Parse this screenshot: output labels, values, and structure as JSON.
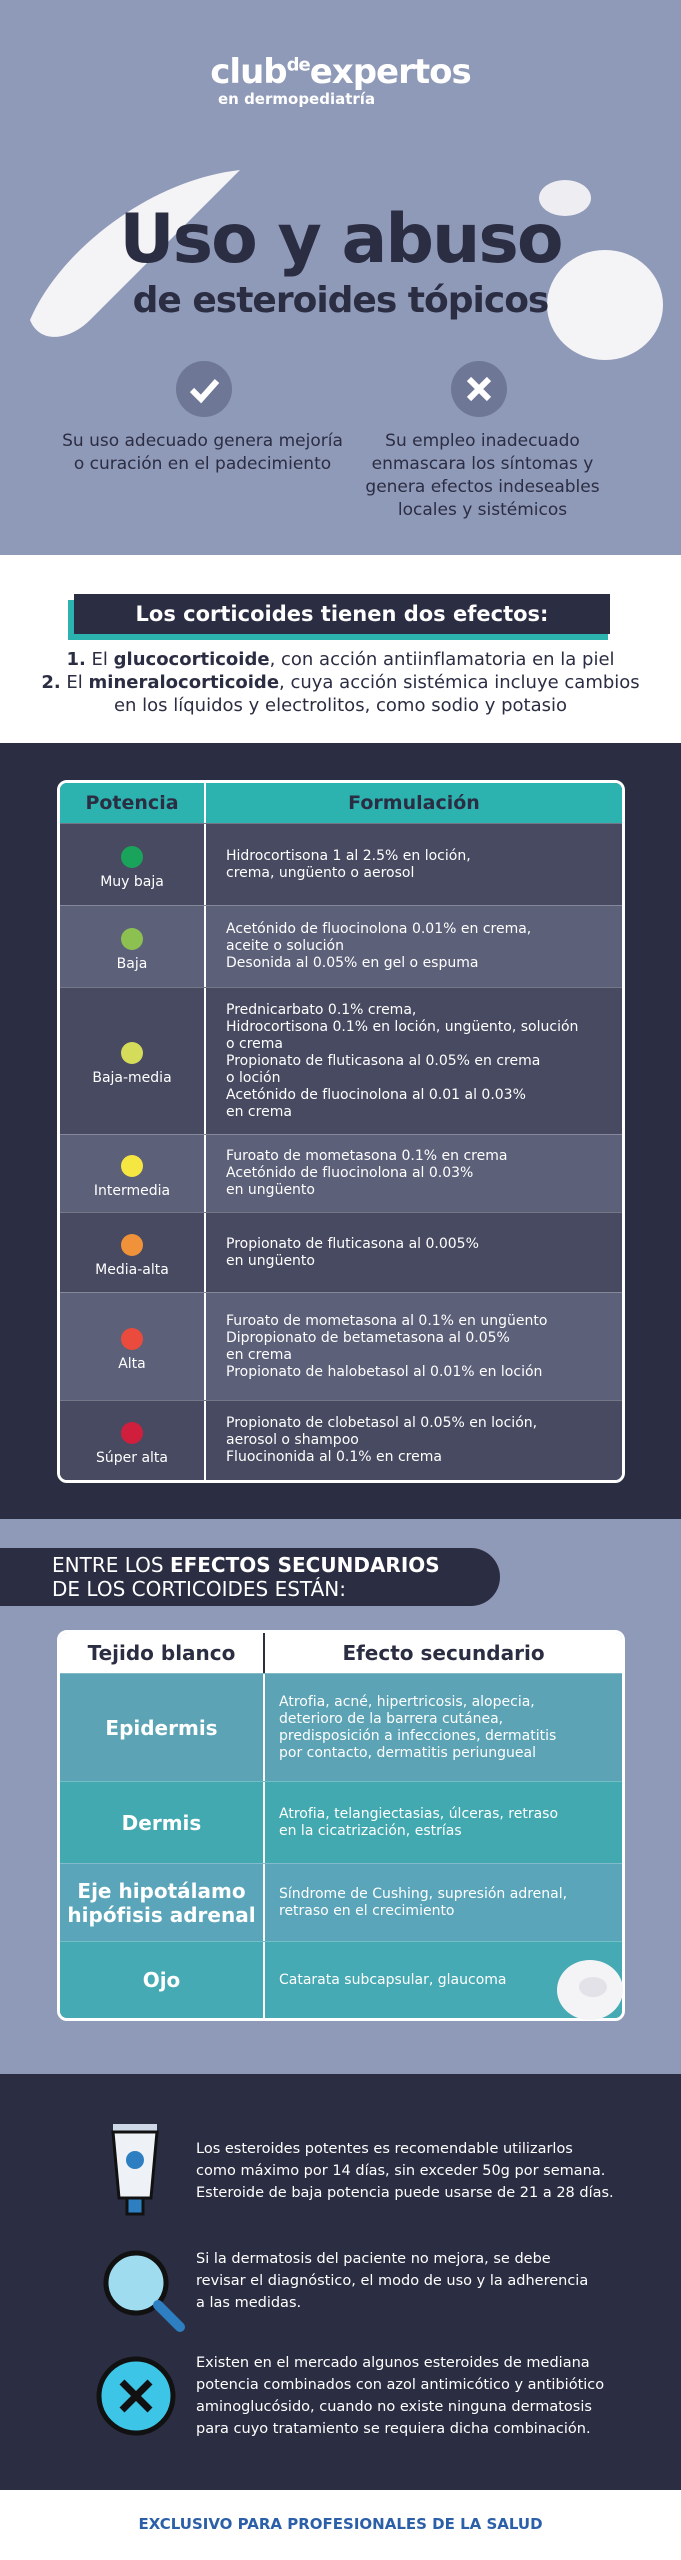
{
  "header": {
    "brand": [
      "club",
      "de",
      "expertos"
    ],
    "brand_sub": "en dermopediatría",
    "title": "Uso y abuso",
    "subtitle": "de esteroides tópicos",
    "good": "Su uso adecuado genera mejoría o curación en el padecimiento",
    "bad": "Su empleo inadecuado enmascara los síntomas y genera efectos indeseables locales y sistémicos"
  },
  "effects": {
    "heading": "Los corticoides tienen dos efectos:",
    "items": [
      [
        "1.",
        "El",
        "glucocorticoide",
        ", con acción antiinflamatoria en la piel"
      ],
      [
        "2.",
        "El",
        "mineralocorticoide",
        ", cuya acción sistémica incluye cambios en los líquidos y electrolitos, como sodio y potasio"
      ]
    ]
  },
  "potency_table": {
    "headers": [
      "Potencia",
      "Formulación"
    ],
    "rows": [
      {
        "potency": "Muy baja",
        "color": "#1aa35a",
        "lines": [
          "Hidrocortisona 1 al 2.5% en loción,",
          "crema, ungüento o aerosol"
        ]
      },
      {
        "potency": "Baja",
        "color": "#8cc152",
        "lines": [
          "Acetónido de fluocinolona 0.01% en crema,",
          " aceite o solución",
          "Desonida al 0.05% en gel o espuma"
        ]
      },
      {
        "potency": "Baja-media",
        "color": "#d4dc5a",
        "lines": [
          "Prednicarbato 0.1% crema,",
          "Hidrocortisona 0.1% en loción, ungüento, solución",
          "o crema",
          "Propionato de fluticasona al 0.05% en crema",
          "o loción",
          "Acetónido de fluocinolona al 0.01 al 0.03%",
          "en crema"
        ]
      },
      {
        "potency": "Intermedia",
        "color": "#f5e642",
        "lines": [
          "Furoato de mometasona 0.1% en crema",
          "Acetónido de fluocinolona al 0.03%",
          "en ungüento"
        ]
      },
      {
        "potency": "Media-alta",
        "color": "#f0923a",
        "lines": [
          "Propionato de fluticasona al 0.005%",
          " en ungüento"
        ]
      },
      {
        "potency": "Alta",
        "color": "#ea4b3c",
        "lines": [
          "Furoato de mometasona al 0.1% en ungüento",
          "Dipropionato de betametasona al 0.05%",
          "en crema",
          "Propionato de halobetasol al 0.01% en loción"
        ]
      },
      {
        "potency": "Súper alta",
        "color": "#d01f3c",
        "lines": [
          "Propionato de clobetasol al 0.05% en loción,",
          "aerosol o shampoo",
          "Fluocinonida al 0.1% en crema"
        ]
      }
    ]
  },
  "side_effects": {
    "heading": [
      "ENTRE LOS ",
      "EFECTOS SECUNDARIOS",
      "DE LOS CORTICOIDES ESTÁN:"
    ],
    "headers": [
      "Tejido blanco",
      "Efecto secundario"
    ],
    "rows": [
      {
        "tissue": [
          "Epidermis"
        ],
        "lines": [
          "Atrofia, acné, hipertricosis, alopecia,",
          "deterioro de la barrera cutánea,",
          "predisposición a infecciones, dermatitis",
          "por contacto, dermatitis periungueal"
        ]
      },
      {
        "tissue": [
          "Dermis"
        ],
        "lines": [
          "Atrofia, telangiectasias, úlceras, retraso",
          "en la cicatrización, estrías"
        ]
      },
      {
        "tissue": [
          "Eje hipotálamo",
          "hipófisis adrenal"
        ],
        "lines": [
          "Síndrome de Cushing, supresión adrenal,",
          "retraso en el crecimiento"
        ]
      },
      {
        "tissue": [
          "Ojo"
        ],
        "lines": [
          "Catarata subcapsular, glaucoma"
        ]
      }
    ]
  },
  "tips": [
    [
      "Los esteroides potentes es recomendable utilizarlos",
      "como máximo por 14 días, sin exceder 50g por semana.",
      "Esteroide de baja potencia puede usarse de 21 a 28 días."
    ],
    [
      "Si la dermatosis del paciente no mejora, se debe",
      "revisar el diagnóstico, el modo de uso y la adherencia",
      "a las medidas."
    ],
    [
      "Existen en el mercado algunos esteroides de mediana",
      "potencia combinados con azol antimicótico y antibiótico",
      "aminoglucósido, cuando no existe ninguna dermatosis",
      "para cuyo tratamiento se requiera dicha combinación."
    ]
  ],
  "footer": "EXCLUSIVO PARA PROFESIONALES DE LA SALUD"
}
